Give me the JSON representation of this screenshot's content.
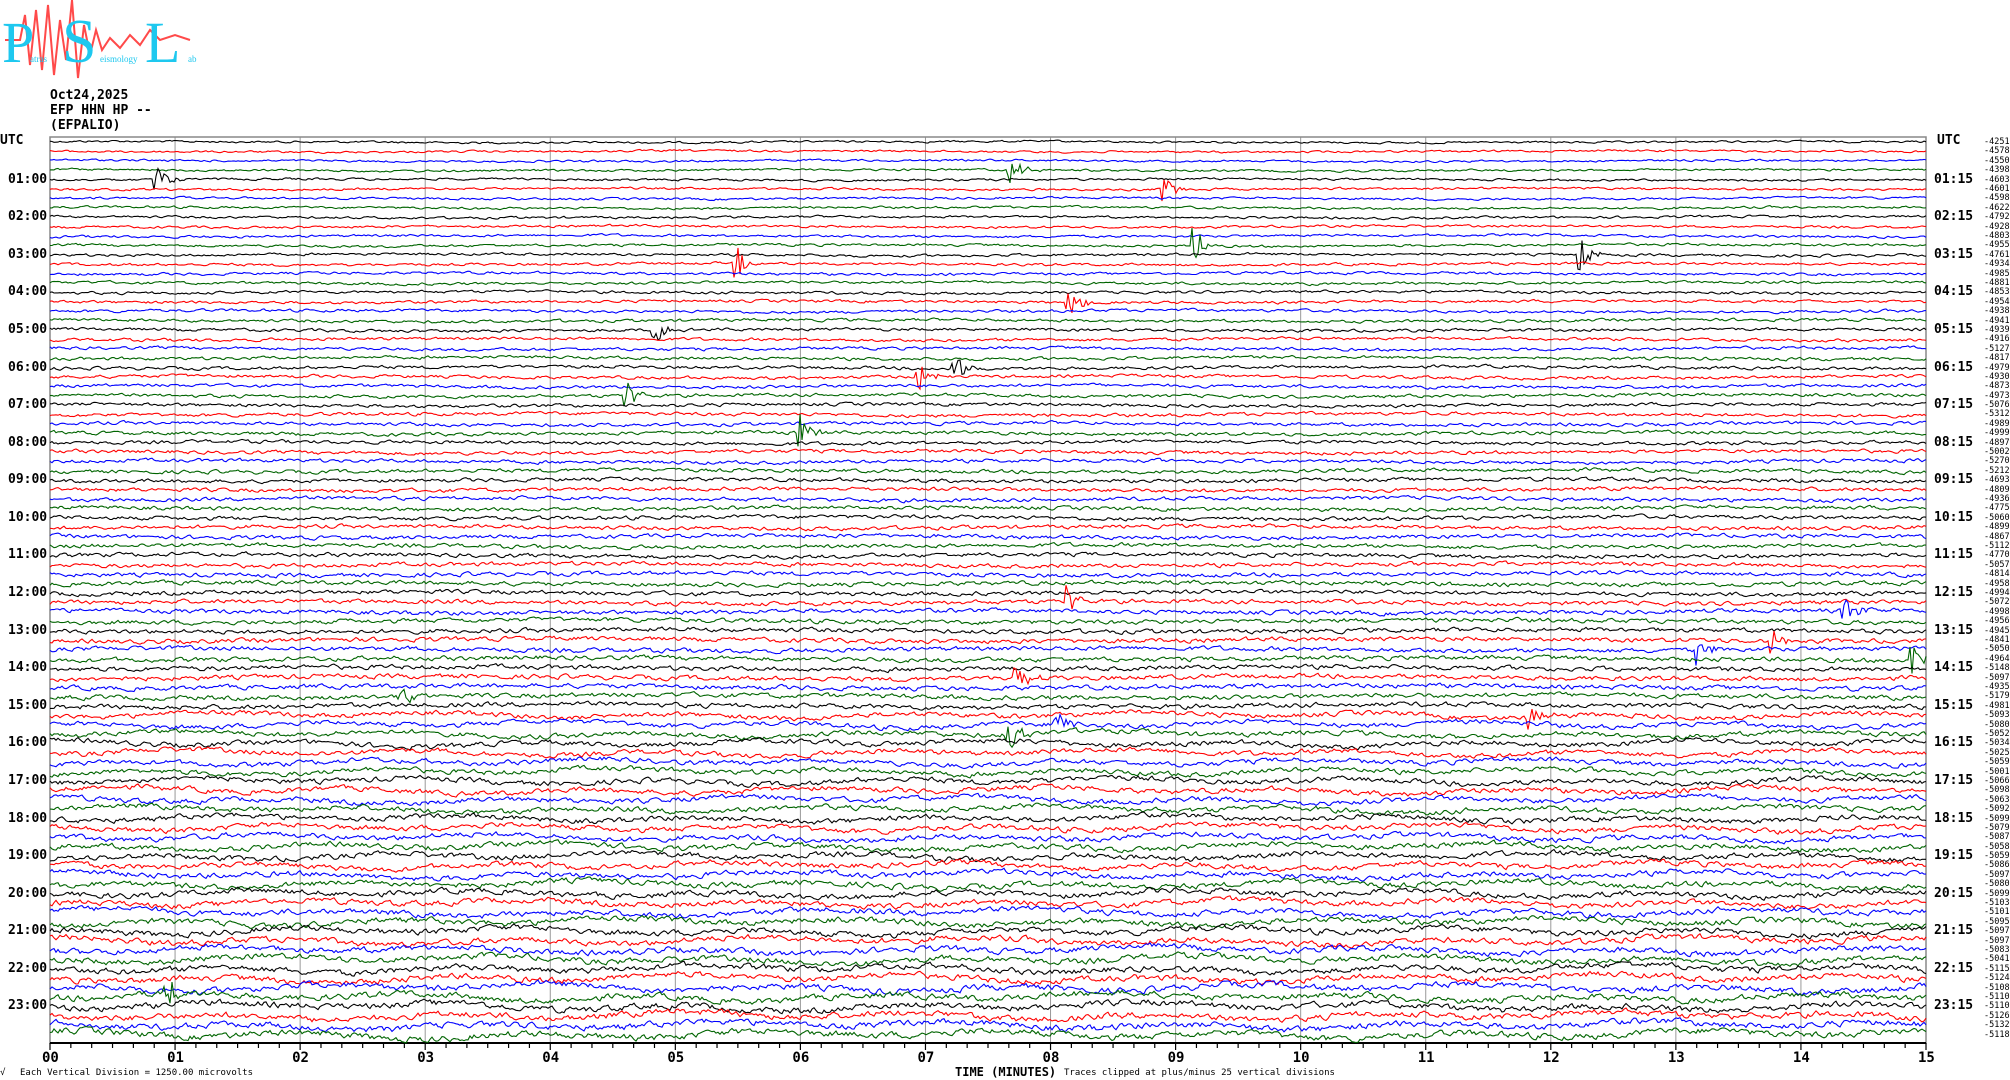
{
  "logo": {
    "text": "Patras Seismology Lab",
    "letters": [
      "P",
      "S",
      "L"
    ],
    "letter_color": "#1ec8ef",
    "wave_color": "#ff4a4a"
  },
  "header": {
    "date": "Oct24,2025",
    "channel": "EFP HHN HP --",
    "station": "(EFPALIO)"
  },
  "chart_data": {
    "type": "line",
    "subtype": "helicorder",
    "left_axis_title": "UTC",
    "right_axis_title": "UTC",
    "left_hour_labels": [
      "01:00",
      "02:00",
      "03:00",
      "04:00",
      "05:00",
      "06:00",
      "07:00",
      "08:00",
      "09:00",
      "10:00",
      "11:00",
      "12:00",
      "13:00",
      "14:00",
      "15:00",
      "16:00",
      "17:00",
      "18:00",
      "19:00",
      "20:00",
      "21:00",
      "22:00",
      "23:00"
    ],
    "right_hour_labels": [
      "01:15",
      "02:15",
      "03:15",
      "04:15",
      "05:15",
      "06:15",
      "07:15",
      "08:15",
      "09:15",
      "10:15",
      "11:15",
      "12:15",
      "13:15",
      "14:15",
      "15:15",
      "16:15",
      "17:15",
      "18:15",
      "19:15",
      "20:15",
      "21:15",
      "22:15",
      "23:15"
    ],
    "trace_offsets": [
      -4251,
      -4578,
      -4550,
      -4398,
      -4603,
      -4601,
      -4598,
      -4622,
      -4792,
      -4928,
      -4803,
      -4955,
      -4761,
      -4934,
      -4985,
      -4881,
      -4853,
      -4954,
      -4938,
      -4941,
      -4939,
      -4916,
      -5127,
      -4817,
      -4979,
      -4930,
      -4873,
      -4973,
      -5076,
      -5312,
      -4989,
      -4999,
      -4897,
      -5002,
      -5270,
      -5212,
      -4693,
      -4809,
      -4936,
      -4775,
      -5060,
      -4899,
      -4867,
      -5112,
      -4770,
      -5057,
      -4814,
      -4958,
      -4994,
      -5072,
      -4998,
      -4956,
      -4945,
      -4841,
      -5050,
      -4964,
      -5148,
      -5097,
      -4935,
      -5179,
      -4981,
      -5093,
      -5080,
      -5052,
      -5034,
      -5025,
      -5059,
      -5001,
      -5066,
      -5098,
      -5063,
      -5092,
      -5099,
      -5079,
      -5087,
      -5058,
      -5059,
      -5086,
      -5097,
      -5080,
      -5099,
      -5103,
      -5101,
      -5095,
      -5097,
      -5097,
      -5083,
      -5041,
      -5115,
      -5124,
      -5108,
      -5110,
      -5110,
      -5126,
      -5132,
      -5118
    ],
    "trace_colors": [
      "#000000",
      "#ff0000",
      "#0000ff",
      "#006400"
    ],
    "minutes_per_line": 15,
    "xlim": [
      0,
      15
    ],
    "x_ticks": [
      "00",
      "01",
      "02",
      "03",
      "04",
      "05",
      "06",
      "07",
      "08",
      "09",
      "10",
      "11",
      "12",
      "13",
      "14",
      "15"
    ],
    "xlabel": "TIME (MINUTES)",
    "grid": true,
    "events": [
      {
        "trace": 3,
        "minute": 7.67
      },
      {
        "trace": 4,
        "minute": 0.84
      },
      {
        "trace": 5,
        "minute": 8.9
      },
      {
        "trace": 11,
        "minute": 9.15
      },
      {
        "trace": 12,
        "minute": 12.23
      },
      {
        "trace": 13,
        "minute": 5.48
      },
      {
        "trace": 17,
        "minute": 8.14
      },
      {
        "trace": 20,
        "minute": 4.82
      },
      {
        "trace": 24,
        "minute": 7.22
      },
      {
        "trace": 25,
        "minute": 6.93
      },
      {
        "trace": 27,
        "minute": 4.6
      },
      {
        "trace": 31,
        "minute": 6.0
      },
      {
        "trace": 49,
        "minute": 8.12
      },
      {
        "trace": 50,
        "minute": 14.34
      },
      {
        "trace": 53,
        "minute": 13.75
      },
      {
        "trace": 54,
        "minute": 13.16
      },
      {
        "trace": 55,
        "minute": 14.88
      },
      {
        "trace": 57,
        "minute": 7.71
      },
      {
        "trace": 59,
        "minute": 2.79
      },
      {
        "trace": 61,
        "minute": 11.81
      },
      {
        "trace": 62,
        "minute": 8.04
      },
      {
        "trace": 63,
        "minute": 7.66
      },
      {
        "trace": 91,
        "minute": 0.93
      }
    ]
  },
  "footer": {
    "scale_note": "Each Vertical Division = 1250.00 microvolts",
    "clip_note": "Traces clipped at plus/minus 25 vertical divisions",
    "corner_mark": "√"
  }
}
